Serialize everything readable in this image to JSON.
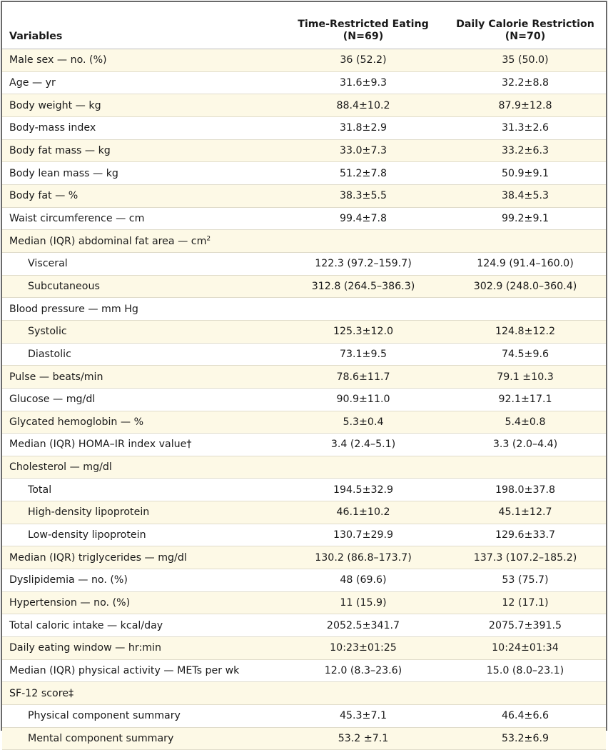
{
  "headers": {
    "variables": "Variables",
    "groups": [
      {
        "name": "Time-Restricted Eating",
        "n": "(N=69)"
      },
      {
        "name": "Daily Calorie Restriction",
        "n": "(N=70)"
      }
    ]
  },
  "rows": [
    {
      "label": "Male sex — no. (%)",
      "indent": false,
      "tre": "36 (52.2)",
      "dcr": "35 (50.0)"
    },
    {
      "label": "Age — yr",
      "indent": false,
      "tre": "31.6±9.3",
      "dcr": "32.2±8.8"
    },
    {
      "label": "Body weight — kg",
      "indent": false,
      "tre": "88.4±10.2",
      "dcr": "87.9±12.8"
    },
    {
      "label": "Body-mass index",
      "indent": false,
      "tre": "31.8±2.9",
      "dcr": "31.3±2.6"
    },
    {
      "label": "Body fat mass — kg",
      "indent": false,
      "tre": "33.0±7.3",
      "dcr": "33.2±6.3"
    },
    {
      "label": "Body lean mass — kg",
      "indent": false,
      "tre": "51.2±7.8",
      "dcr": "50.9±9.1"
    },
    {
      "label": "Body fat — %",
      "indent": false,
      "tre": "38.3±5.5",
      "dcr": "38.4±5.3"
    },
    {
      "label": "Waist circumference — cm",
      "indent": false,
      "tre": "99.4±7.8",
      "dcr": "99.2±9.1"
    },
    {
      "label": "Median (IQR) abdominal fat area — cm",
      "sup": "2",
      "indent": false,
      "tre": "",
      "dcr": ""
    },
    {
      "label": "Visceral",
      "indent": true,
      "tre": "122.3 (97.2–159.7)",
      "dcr": "124.9 (91.4–160.0)"
    },
    {
      "label": "Subcutaneous",
      "indent": true,
      "tre": "312.8 (264.5–386.3)",
      "dcr": "302.9 (248.0–360.4)"
    },
    {
      "label": "Blood pressure — mm Hg",
      "indent": false,
      "tre": "",
      "dcr": ""
    },
    {
      "label": "Systolic",
      "indent": true,
      "tre": "125.3±12.0",
      "dcr": "124.8±12.2"
    },
    {
      "label": "Diastolic",
      "indent": true,
      "tre": "73.1±9.5",
      "dcr": "74.5±9.6"
    },
    {
      "label": "Pulse — beats/min",
      "indent": false,
      "tre": "78.6±11.7",
      "dcr": "79.1 ±10.3"
    },
    {
      "label": "Glucose — mg/dl",
      "indent": false,
      "tre": "90.9±11.0",
      "dcr": "92.1±17.1"
    },
    {
      "label": "Glycated hemoglobin — %",
      "indent": false,
      "tre": "5.3±0.4",
      "dcr": "5.4±0.8"
    },
    {
      "label": "Median (IQR) HOMA–IR index value†",
      "indent": false,
      "tre": "3.4 (2.4–5.1)",
      "dcr": "3.3 (2.0–4.4)"
    },
    {
      "label": "Cholesterol — mg/dl",
      "indent": false,
      "tre": "",
      "dcr": ""
    },
    {
      "label": "Total",
      "indent": true,
      "tre": "194.5±32.9",
      "dcr": "198.0±37.8"
    },
    {
      "label": "High-density lipoprotein",
      "indent": true,
      "tre": "46.1±10.2",
      "dcr": "45.1±12.7"
    },
    {
      "label": "Low-density lipoprotein",
      "indent": true,
      "tre": "130.7±29.9",
      "dcr": "129.6±33.7"
    },
    {
      "label": "Median (IQR) triglycerides — mg/dl",
      "indent": false,
      "tre": "130.2 (86.8–173.7)",
      "dcr": "137.3 (107.2–185.2)"
    },
    {
      "label": "Dyslipidemia — no. (%)",
      "indent": false,
      "tre": "48 (69.6)",
      "dcr": "53 (75.7)"
    },
    {
      "label": "Hypertension — no. (%)",
      "indent": false,
      "tre": "11 (15.9)",
      "dcr": "12 (17.1)"
    },
    {
      "label": "Total caloric intake — kcal/day",
      "indent": false,
      "tre": "2052.5±341.7",
      "dcr": "2075.7±391.5"
    },
    {
      "label": "Daily eating window — hr:min",
      "indent": false,
      "tre": "10:23±01:25",
      "dcr": "10:24±01:34"
    },
    {
      "label": "Median (IQR) physical activity — METs per wk",
      "indent": false,
      "tre": "12.0 (8.3–23.6)",
      "dcr": "15.0 (8.0–23.1)"
    },
    {
      "label": "SF-12 score‡",
      "indent": false,
      "tre": "",
      "dcr": ""
    },
    {
      "label": "Physical component summary",
      "indent": true,
      "tre": "45.3±7.1",
      "dcr": "46.4±6.6"
    },
    {
      "label": "Mental component summary",
      "indent": true,
      "tre": "53.2 ±7.1",
      "dcr": "53.2±6.9"
    }
  ]
}
